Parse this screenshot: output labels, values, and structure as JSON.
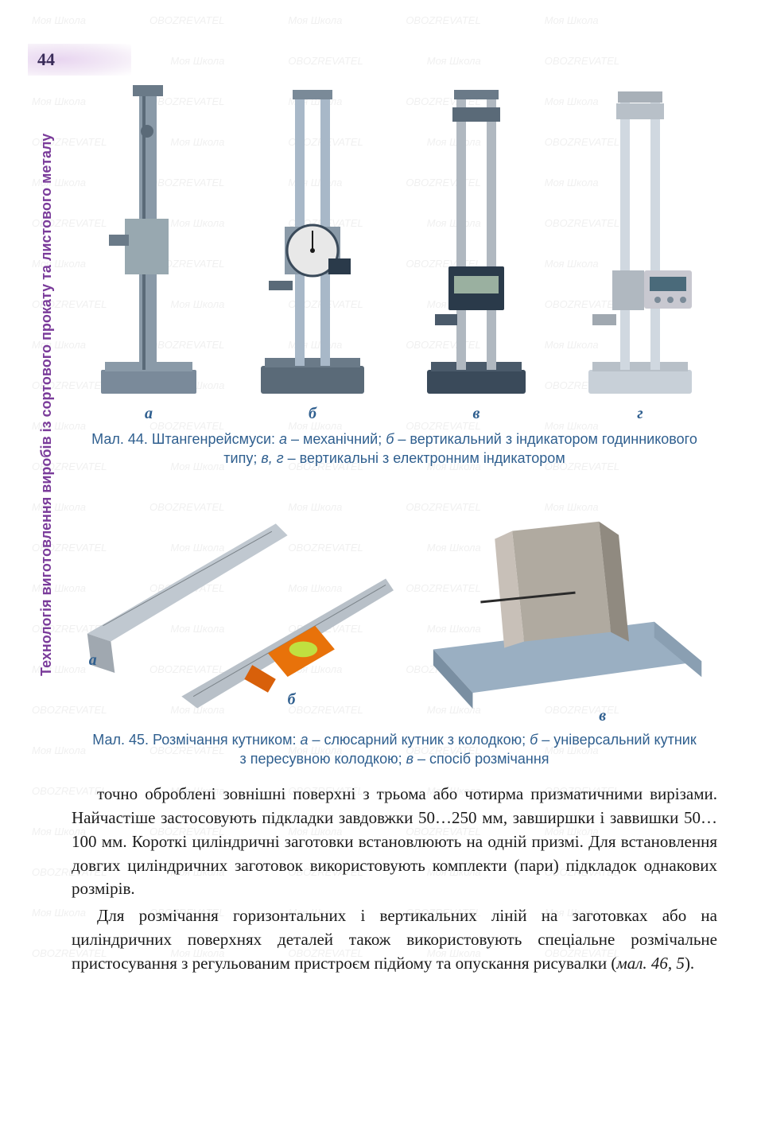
{
  "page_number": "44",
  "side_label": "Технологія виготовлення виробів із сортового прокату та листового металу",
  "watermark_items": [
    "Моя Школа",
    "OBOZREVATEL"
  ],
  "figure44": {
    "subletters": [
      "а",
      "б",
      "в",
      "г"
    ],
    "caption_parts": {
      "prefix": "Мал. 44. Штангенрейсмуси: ",
      "a": "а",
      "a_text": " – механічний; ",
      "b": "б",
      "b_text": " – вертикальний з індикатором годинникового типу; ",
      "vg": "в, г",
      "vg_text": " – вертикальні з електронним індикатором"
    },
    "colors": {
      "base_a": "#7a8a9a",
      "column_a": "#8a9aa8",
      "base_b": "#5a6a78",
      "column_b": "#a8b8c8",
      "dial_b": "#e8e8e8",
      "base_c": "#3a4a5a",
      "column_c": "#b0b8c0",
      "digital_c": "#2a3a4a",
      "base_d": "#c8d0d8",
      "column_d": "#d0d8e0",
      "digital_d": "#c8c8d0"
    }
  },
  "figure45": {
    "subletters": [
      "а",
      "б",
      "в"
    ],
    "caption_parts": {
      "prefix": "Мал. 45. Розмічання кутником: ",
      "a": "а",
      "a_text": " – слюсарний кутник з колодкою; ",
      "b": "б",
      "b_text": " – універсальний кутник з пересувною колодкою; ",
      "v": "в",
      "v_text": " – спосіб розмічання"
    },
    "colors": {
      "ruler_a": "#c0c8d0",
      "ruler_b": "#b8c0c8",
      "handle_b": "#e8720a",
      "level_b": "#c0e040",
      "plate_v": "#9aafc2",
      "piece_v": "#b0aaa0"
    }
  },
  "paragraphs": [
    "точно оброблені зовнішні поверхні з трьома або чотирма призматичними вирізами. Найчастіше застосовують підкладки завдовжки 50…250 мм, завширшки і заввишки 50…100 мм. Короткі циліндричні заготовки встановлюють на одній призмі. Для встановлення довгих циліндричних заготовок використовують комплекти (пари) підкладок однакових розмірів.",
    "Для розмічання горизонтальних і вертикальних ліній на заготовках або на циліндричних поверхнях деталей також використовують спеціальне розмічальне пристосування з регульованим пристроєм підйому та опускання рисувалки (мал. 46, 5)."
  ],
  "text_color": "#1a1a1a",
  "accent_color": "#2f5f8f",
  "side_color": "#7a3b9a"
}
